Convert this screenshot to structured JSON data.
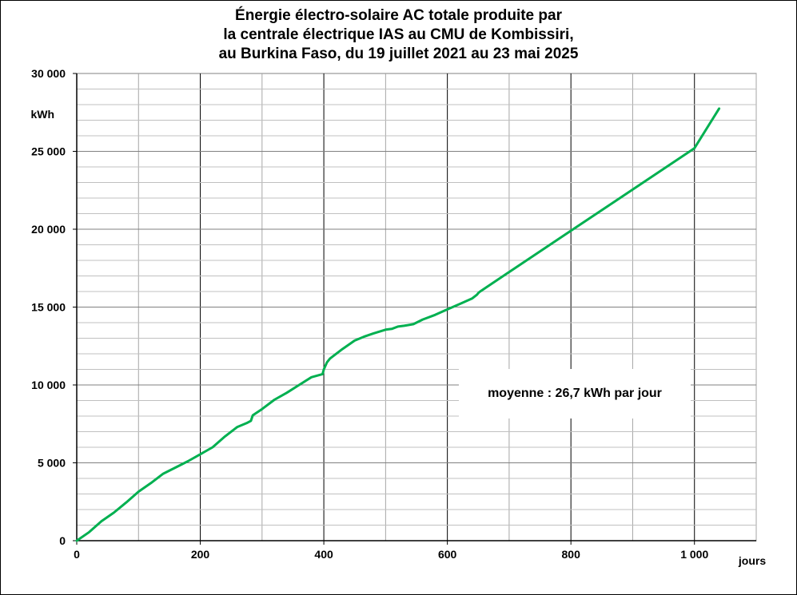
{
  "chart_data": {
    "type": "line",
    "title_lines": [
      "Énergie électro-solaire AC totale produite par",
      "la centrale électrique IAS au CMU de Kombissiri,",
      "au Burkina Faso, du 19 juillet 2021 au 23 mai 2025"
    ],
    "xlabel": "jours",
    "ylabel": "kWh",
    "xlim": [
      0,
      1100
    ],
    "ylim": [
      0,
      30000
    ],
    "x_ticks": [
      0,
      200,
      400,
      600,
      800,
      1000
    ],
    "x_tick_labels": [
      "0",
      "200",
      "400",
      "600",
      "800",
      "1 000"
    ],
    "y_ticks": [
      0,
      5000,
      10000,
      15000,
      20000,
      25000,
      30000
    ],
    "y_tick_labels": [
      "0",
      "5 000",
      "10 000",
      "15 000",
      "20 000",
      "25 000",
      "30 000"
    ],
    "grid": true,
    "annotation": "moyenne : 26,7 kWh par jour",
    "series_color": "#00b050",
    "series": [
      {
        "x": [
          0,
          20,
          40,
          60,
          80,
          100,
          120,
          140,
          160,
          180,
          200,
          220,
          240,
          260,
          275,
          282,
          285,
          300,
          320,
          340,
          360,
          370,
          380,
          398,
          400,
          405,
          410,
          430,
          450,
          465,
          480,
          500,
          510,
          520,
          530,
          545,
          560,
          580,
          600,
          620,
          640,
          648,
          650,
          653,
          700,
          800,
          900,
          1000,
          1040
        ],
        "y": [
          0,
          550,
          1250,
          1800,
          2450,
          3150,
          3700,
          4300,
          4700,
          5100,
          5550,
          6000,
          6700,
          7300,
          7550,
          7700,
          8050,
          8450,
          9050,
          9500,
          10000,
          10250,
          10500,
          10700,
          11000,
          11450,
          11700,
          12300,
          12850,
          13100,
          13300,
          13550,
          13600,
          13750,
          13800,
          13900,
          14200,
          14500,
          14850,
          15200,
          15550,
          15800,
          15900,
          16000,
          17250,
          19900,
          22550,
          25200,
          27750
        ]
      }
    ]
  }
}
